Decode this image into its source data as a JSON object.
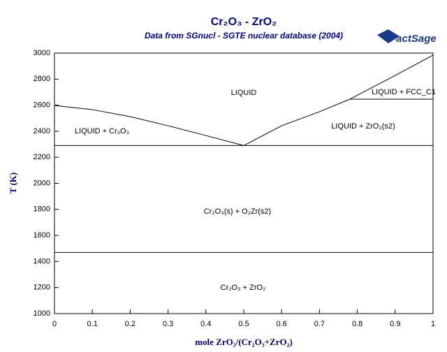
{
  "chart_data": {
    "type": "line",
    "title": "Cr₂O₃ - ZrO₂",
    "subtitle": "Data from SGnucl - SGTE nuclear database (2004)",
    "logo": "FactSage",
    "x_label": "mole ZrO₂/(Cr₂O₃+ZrO₂)",
    "y_label": "T (K)",
    "xlim": [
      0,
      1
    ],
    "ylim": [
      1000,
      3000
    ],
    "xticks": [
      0,
      0.1,
      0.2,
      0.3,
      0.4,
      0.5,
      0.6,
      0.7,
      0.8,
      0.9,
      1
    ],
    "yticks": [
      1000,
      1200,
      1400,
      1600,
      1800,
      2000,
      2200,
      2400,
      2600,
      2800,
      3000
    ],
    "series": [
      {
        "color": "#000000",
        "x": [
          0,
          0.1,
          0.2,
          0.3,
          0.4,
          0.5
        ],
        "values": [
          2598,
          2566,
          2512,
          2442,
          2367,
          2290
        ]
      },
      {
        "color": "#000000",
        "x": [
          0.5,
          0.6,
          0.7,
          0.78,
          0.9,
          1
        ],
        "values": [
          2290,
          2442,
          2550,
          2646,
          2828,
          2984
        ]
      },
      {
        "color": "#000000",
        "x": [
          0,
          1
        ],
        "values": [
          2290,
          2290
        ]
      },
      {
        "color": "#000000",
        "x": [
          0.78,
          1
        ],
        "values": [
          2646,
          2646
        ]
      },
      {
        "color": "#000000",
        "x": [
          0,
          1
        ],
        "values": [
          1470,
          1470
        ]
      }
    ],
    "annotations": [
      "LIQUID",
      "LIQUID + Cr₂O₃",
      "LIQUID + ZrO₂(s2)",
      "LIQUID + FCC_C1",
      "Cr₂O₃(s) + O₂Zr(s2)",
      "Cr₂O₃ + ZrO₂"
    ]
  }
}
